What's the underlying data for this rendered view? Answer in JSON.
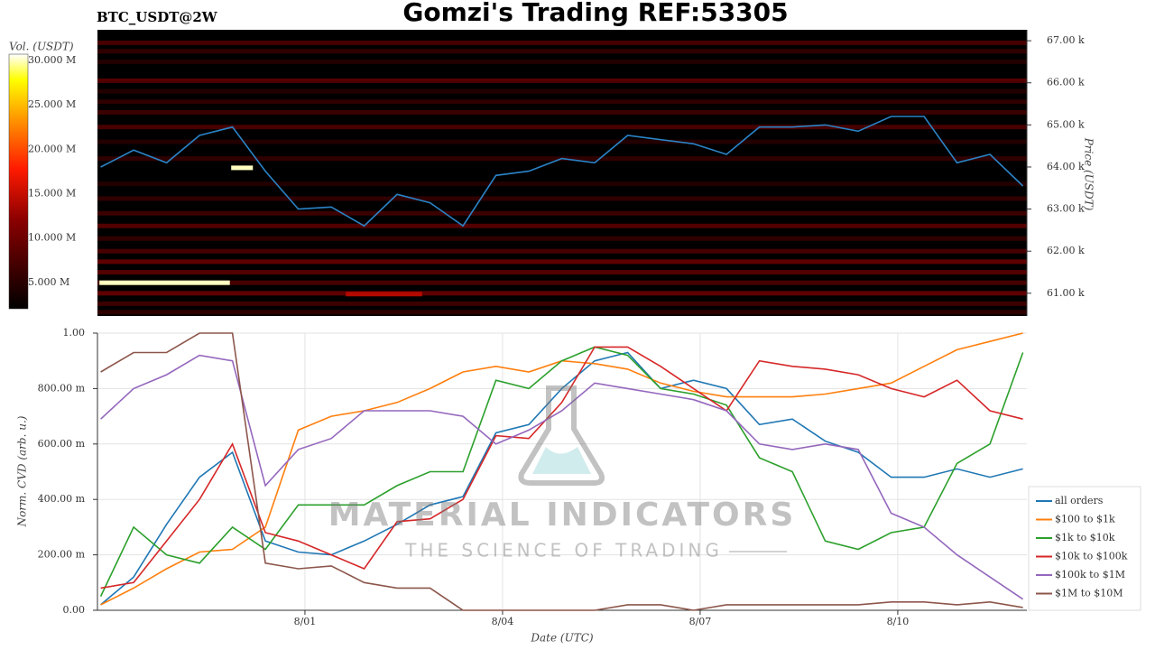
{
  "title": "Gomzi's Trading REF:53305",
  "watermark": {
    "line1": "MATERIAL INDICATORS",
    "line2": "THE SCIENCE OF TRADING"
  },
  "chart_data": [
    {
      "type": "heatmap",
      "title": "BTC_USDT@2W",
      "y_label": "Price (USDT)",
      "colorbar_label": "Vol. (USDT)",
      "xlim": [
        28.85,
        42.96
      ],
      "ylim": [
        60460,
        67260
      ],
      "yticks": [
        {
          "value": 61000,
          "label": "61.00 k"
        },
        {
          "value": 62000,
          "label": "62.00 k"
        },
        {
          "value": 63000,
          "label": "63.00 k"
        },
        {
          "value": 64000,
          "label": "64.00 k"
        },
        {
          "value": 65000,
          "label": "65.00 k"
        },
        {
          "value": 66000,
          "label": "66.00 k"
        },
        {
          "value": 67000,
          "label": "67.00 k"
        }
      ],
      "clim": [
        2050000,
        30700000
      ],
      "cticks": [
        {
          "value": 5000000,
          "label": "5.000 M"
        },
        {
          "value": 10000000,
          "label": "10.000 M"
        },
        {
          "value": 15000000,
          "label": "15.000 M"
        },
        {
          "value": 20000000,
          "label": "20.000 M"
        },
        {
          "value": 25000000,
          "label": "25.000 M"
        },
        {
          "value": 30000000,
          "label": "30.000 M"
        }
      ],
      "heatmap": {
        "prices": [
          66950,
          66750,
          66500,
          66050,
          65800,
          65550,
          65300,
          64950,
          64600,
          64200,
          63600,
          63250,
          62900,
          62600,
          62300,
          62000,
          61750,
          61500,
          61250,
          61000,
          60750,
          60550
        ],
        "volumes": [
          8000000,
          6000000,
          5000000,
          9000000,
          5000000,
          6000000,
          7000000,
          8000000,
          5000000,
          6000000,
          5000000,
          6000000,
          7000000,
          9000000,
          6000000,
          8000000,
          10000000,
          9000000,
          8000000,
          10000000,
          7000000,
          6000000
        ]
      },
      "segments": [
        {
          "price": 61250,
          "x_start": 28.88,
          "x_end": 30.86,
          "volume": 30000000
        },
        {
          "price": 63980,
          "x_start": 30.88,
          "x_end": 31.21,
          "volume": 30000000
        },
        {
          "price": 60980,
          "x_start": 32.62,
          "x_end": 33.78,
          "volume": 14000000
        }
      ],
      "x": [
        28.9,
        29.4,
        29.9,
        30.4,
        30.9,
        31.4,
        31.9,
        32.4,
        32.9,
        33.4,
        33.9,
        34.4,
        34.9,
        35.4,
        35.9,
        36.4,
        36.9,
        37.4,
        37.9,
        38.4,
        38.9,
        39.4,
        39.9,
        40.4,
        40.9,
        41.4,
        41.9,
        42.4,
        42.9
      ],
      "series": [
        {
          "color": "#2b83c6",
          "values": [
            64000,
            64400,
            64100,
            64750,
            64950,
            63900,
            63000,
            63050,
            62600,
            63350,
            63150,
            62600,
            63800,
            63900,
            64200,
            64100,
            64750,
            64650,
            64550,
            64300,
            64950,
            64950,
            65000,
            64850,
            65200,
            65200,
            64100,
            64300,
            63550
          ]
        }
      ]
    },
    {
      "type": "line",
      "y_label": "Norm. CVD (arb. u.)",
      "x_label": "Date (UTC)",
      "grid": true,
      "legend": "lower right",
      "xlim": [
        28.85,
        42.96
      ],
      "ylim": [
        0,
        1
      ],
      "xticks": [
        {
          "value": 32,
          "label": "8/01"
        },
        {
          "value": 35,
          "label": "8/04"
        },
        {
          "value": 38,
          "label": "8/07"
        },
        {
          "value": 41,
          "label": "8/10"
        }
      ],
      "yticks": [
        {
          "value": 0,
          "label": "0.00"
        },
        {
          "value": 0.2,
          "label": "200.00 m"
        },
        {
          "value": 0.4,
          "label": "400.00 m"
        },
        {
          "value": 0.6,
          "label": "600.00 m"
        },
        {
          "value": 0.8,
          "label": "800.00 m"
        },
        {
          "value": 1,
          "label": "1.00"
        }
      ],
      "x": [
        28.9,
        29.4,
        29.9,
        30.4,
        30.9,
        31.4,
        31.9,
        32.4,
        32.9,
        33.4,
        33.9,
        34.4,
        34.9,
        35.4,
        35.9,
        36.4,
        36.9,
        37.4,
        37.9,
        38.4,
        38.9,
        39.4,
        39.9,
        40.4,
        40.9,
        41.4,
        41.9,
        42.4,
        42.9
      ],
      "series": [
        {
          "name": "all orders",
          "color": "#1f77b4",
          "values": [
            0.02,
            0.12,
            0.31,
            0.48,
            0.57,
            0.25,
            0.21,
            0.2,
            0.25,
            0.31,
            0.38,
            0.41,
            0.64,
            0.67,
            0.8,
            0.9,
            0.93,
            0.8,
            0.83,
            0.8,
            0.67,
            0.69,
            0.61,
            0.57,
            0.48,
            0.48,
            0.51,
            0.48,
            0.51
          ]
        },
        {
          "name": "$100 to $1k",
          "color": "#ff7f0e",
          "values": [
            0.02,
            0.08,
            0.15,
            0.21,
            0.22,
            0.3,
            0.65,
            0.7,
            0.72,
            0.75,
            0.8,
            0.86,
            0.88,
            0.86,
            0.9,
            0.89,
            0.87,
            0.82,
            0.79,
            0.77,
            0.77,
            0.77,
            0.78,
            0.8,
            0.82,
            0.88,
            0.94,
            0.97,
            1.0
          ]
        },
        {
          "name": "$1k to $10k",
          "color": "#2ca02c",
          "values": [
            0.05,
            0.3,
            0.2,
            0.17,
            0.3,
            0.22,
            0.38,
            0.38,
            0.38,
            0.45,
            0.5,
            0.5,
            0.83,
            0.8,
            0.9,
            0.95,
            0.92,
            0.8,
            0.78,
            0.74,
            0.55,
            0.5,
            0.25,
            0.22,
            0.28,
            0.3,
            0.53,
            0.6,
            0.93
          ]
        },
        {
          "name": "$10k to $100k",
          "color": "#d62728",
          "values": [
            0.08,
            0.1,
            0.25,
            0.4,
            0.6,
            0.28,
            0.25,
            0.2,
            0.15,
            0.32,
            0.33,
            0.4,
            0.63,
            0.62,
            0.75,
            0.95,
            0.95,
            0.88,
            0.8,
            0.72,
            0.9,
            0.88,
            0.87,
            0.85,
            0.8,
            0.77,
            0.83,
            0.72,
            0.69
          ]
        },
        {
          "name": "$100k to $1M",
          "color": "#9467bd",
          "values": [
            0.69,
            0.8,
            0.85,
            0.92,
            0.9,
            0.45,
            0.58,
            0.62,
            0.72,
            0.72,
            0.72,
            0.7,
            0.6,
            0.65,
            0.72,
            0.82,
            0.8,
            0.78,
            0.76,
            0.72,
            0.6,
            0.58,
            0.6,
            0.58,
            0.35,
            0.3,
            0.2,
            0.12,
            0.04
          ]
        },
        {
          "name": "$1M to $10M",
          "color": "#8c564b",
          "values": [
            0.86,
            0.93,
            0.93,
            1.0,
            1.0,
            0.17,
            0.15,
            0.16,
            0.1,
            0.08,
            0.08,
            0,
            0,
            0,
            0,
            0,
            0.02,
            0.02,
            0,
            0.02,
            0.02,
            0.02,
            0.02,
            0.02,
            0.03,
            0.03,
            0.02,
            0.03,
            0.01
          ]
        }
      ]
    }
  ]
}
